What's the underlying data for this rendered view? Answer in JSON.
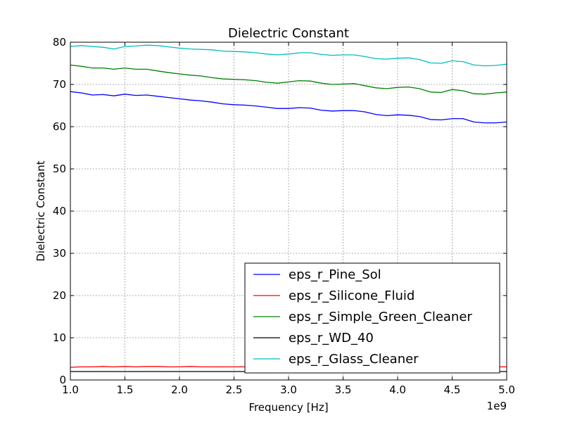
{
  "chart_data": {
    "type": "line",
    "title": "Dielectric Constant",
    "xlabel": "Frequency [Hz]",
    "ylabel": "Dielectric Constant",
    "x_offset_label": "1e9",
    "xlim": [
      1.0,
      5.0
    ],
    "ylim": [
      0,
      80
    ],
    "x_ticks": [
      1.0,
      1.5,
      2.0,
      2.5,
      3.0,
      3.5,
      4.0,
      4.5,
      5.0
    ],
    "x_tick_labels": [
      "1.0",
      "1.5",
      "2.0",
      "2.5",
      "3.0",
      "3.5",
      "4.0",
      "4.5",
      "5.0"
    ],
    "y_ticks": [
      0,
      10,
      20,
      30,
      40,
      50,
      60,
      70,
      80
    ],
    "y_tick_labels": [
      "0",
      "10",
      "20",
      "30",
      "40",
      "50",
      "60",
      "70",
      "80"
    ],
    "grid": true,
    "legend_position": "lower-right",
    "x": [
      1.0,
      1.1,
      1.2,
      1.3,
      1.4,
      1.5,
      1.6,
      1.7,
      1.8,
      1.9,
      2.0,
      2.1,
      2.2,
      2.3,
      2.4,
      2.5,
      2.6,
      2.7,
      2.8,
      2.9,
      3.0,
      3.1,
      3.2,
      3.3,
      3.4,
      3.5,
      3.6,
      3.7,
      3.8,
      3.9,
      4.0,
      4.1,
      4.2,
      4.3,
      4.4,
      4.5,
      4.6,
      4.7,
      4.8,
      4.9,
      5.0
    ],
    "series": [
      {
        "name": "eps_r_Pine_Sol",
        "color": "#0000ff",
        "values": [
          68.3,
          68.0,
          67.5,
          67.6,
          67.3,
          67.7,
          67.4,
          67.5,
          67.2,
          66.9,
          66.6,
          66.3,
          66.1,
          65.8,
          65.4,
          65.2,
          65.1,
          64.9,
          64.6,
          64.3,
          64.3,
          64.5,
          64.4,
          63.9,
          63.7,
          63.8,
          63.8,
          63.5,
          62.9,
          62.6,
          62.8,
          62.7,
          62.4,
          61.7,
          61.6,
          61.9,
          61.9,
          61.1,
          60.9,
          60.9,
          61.1
        ]
      },
      {
        "name": "eps_r_Silicone_Fluid",
        "color": "#ff0000",
        "values": [
          3.0,
          3.1,
          3.1,
          3.2,
          3.1,
          3.2,
          3.1,
          3.2,
          3.2,
          3.1,
          3.1,
          3.2,
          3.1,
          3.1,
          3.1,
          3.1,
          3.1,
          3.1,
          3.1,
          3.1,
          3.1,
          3.1,
          3.1,
          3.1,
          3.1,
          3.1,
          3.1,
          3.1,
          3.1,
          3.1,
          3.1,
          3.1,
          3.1,
          3.1,
          3.1,
          3.1,
          3.1,
          3.1,
          3.1,
          3.1,
          3.1
        ]
      },
      {
        "name": "eps_r_Simple_Green_Cleaner",
        "color": "#008000",
        "values": [
          74.6,
          74.3,
          73.9,
          73.9,
          73.6,
          73.9,
          73.6,
          73.6,
          73.2,
          72.8,
          72.5,
          72.2,
          72.0,
          71.6,
          71.3,
          71.2,
          71.1,
          70.9,
          70.5,
          70.3,
          70.6,
          70.9,
          70.8,
          70.3,
          70.0,
          70.1,
          70.2,
          69.7,
          69.2,
          69.0,
          69.3,
          69.4,
          69.0,
          68.2,
          68.1,
          68.8,
          68.5,
          67.8,
          67.7,
          68.0,
          68.2
        ]
      },
      {
        "name": "eps_r_WD_40",
        "color": "#000000",
        "values": [
          2.0,
          2.0,
          2.0,
          2.0,
          2.0,
          2.0,
          2.0,
          2.0,
          2.0,
          2.0,
          2.0,
          2.0,
          2.0,
          2.0,
          2.0,
          2.0,
          2.0,
          2.0,
          2.0,
          2.0,
          2.0,
          2.0,
          2.0,
          2.0,
          2.0,
          2.0,
          2.0,
          2.0,
          2.0,
          2.0,
          2.0,
          2.0,
          2.0,
          2.0,
          2.0,
          2.0,
          2.0,
          2.0,
          2.0,
          2.0,
          2.0
        ]
      },
      {
        "name": "eps_r_Glass_Cleaner",
        "color": "#00bfbf",
        "values": [
          79.0,
          79.2,
          79.0,
          78.8,
          78.4,
          79.0,
          79.1,
          79.3,
          79.2,
          78.9,
          78.6,
          78.4,
          78.3,
          78.2,
          77.9,
          77.8,
          77.7,
          77.5,
          77.2,
          77.0,
          77.2,
          77.5,
          77.5,
          77.1,
          76.9,
          77.0,
          77.0,
          76.6,
          76.1,
          76.0,
          76.2,
          76.3,
          75.9,
          75.1,
          75.0,
          75.6,
          75.4,
          74.6,
          74.4,
          74.5,
          74.8
        ]
      }
    ]
  }
}
